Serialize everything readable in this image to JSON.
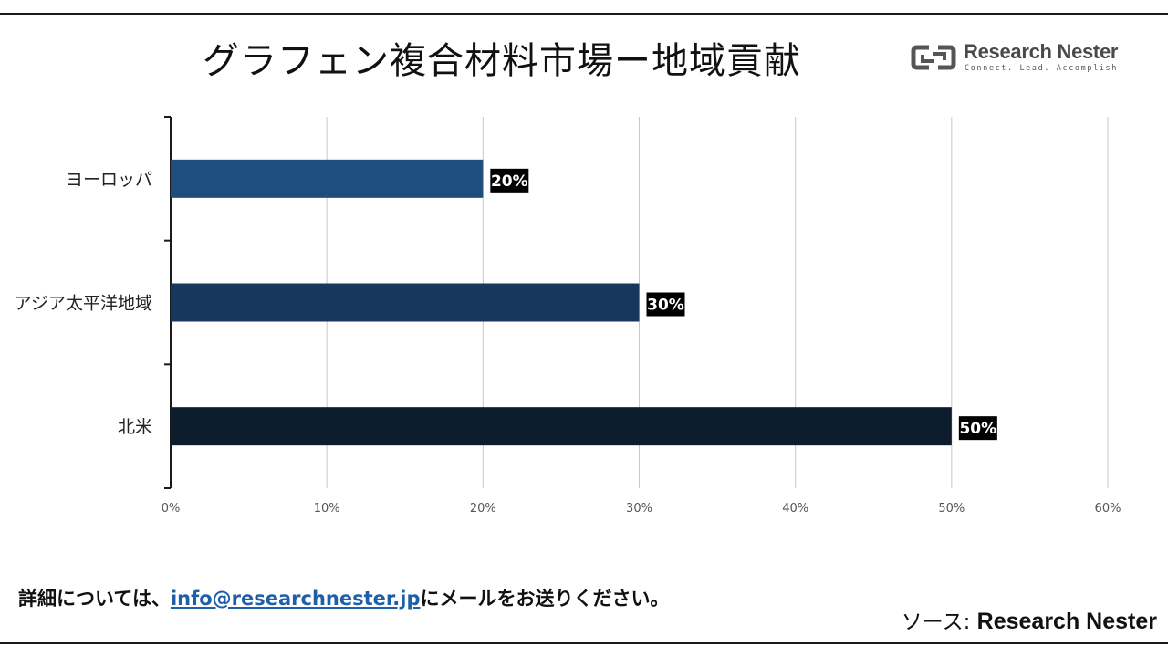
{
  "chart_data": {
    "type": "bar",
    "orientation": "horizontal",
    "title": "グラフェン複合材料市場ー地域貢献",
    "categories": [
      "ヨーロッパ",
      "アジア太平洋地域",
      "北米"
    ],
    "values": [
      20,
      30,
      50
    ],
    "data_labels": [
      "20%",
      "30%",
      "50%"
    ],
    "xlim": [
      0,
      60
    ],
    "x_ticks": [
      "0%",
      "10%",
      "20%",
      "30%",
      "40%",
      "50%",
      "60%"
    ],
    "grid": "vertical",
    "xlabel": "",
    "ylabel": ""
  },
  "colors": {
    "bars": [
      "#1f4e7e",
      "#17375d",
      "#0e1d2d"
    ],
    "label_bg": "#000000",
    "label_text": "#ffffff",
    "grid": "#c8c8c8",
    "axis": "#1a1a1a"
  },
  "logo": {
    "name": "Research Nester",
    "tagline": "Connect. Lead. Accomplish",
    "icon": "research-nester-logo-icon"
  },
  "footer": {
    "prefix": "詳細については、",
    "email": "info@researchnester.jp",
    "suffix": "にメールをお送りください。"
  },
  "source": {
    "label": "ソース: ",
    "name": "Research Nester"
  }
}
